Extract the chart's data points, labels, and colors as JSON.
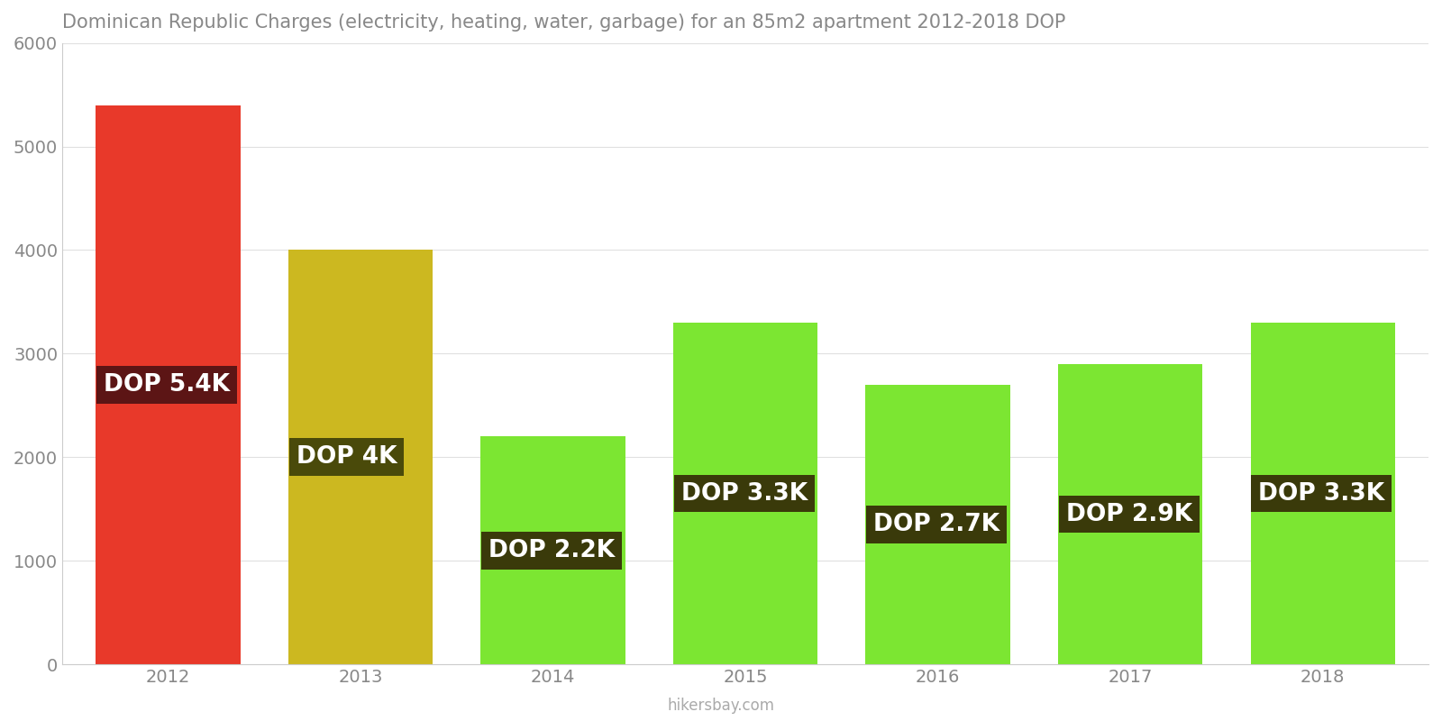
{
  "title": "Dominican Republic Charges (electricity, heating, water, garbage) for an 85m2 apartment 2012-2018 DOP",
  "years": [
    2012,
    2013,
    2014,
    2015,
    2016,
    2017,
    2018
  ],
  "values": [
    5400,
    4000,
    2200,
    3300,
    2700,
    2900,
    3300
  ],
  "labels": [
    "DOP 5.4K",
    "DOP 4K",
    "DOP 2.2K",
    "DOP 3.3K",
    "DOP 2.7K",
    "DOP 2.9K",
    "DOP 3.3K"
  ],
  "bar_colors": [
    "#e8392a",
    "#ccb820",
    "#7ce632",
    "#7ce632",
    "#7ce632",
    "#7ce632",
    "#7ce632"
  ],
  "label_bg_colors": [
    "#5c1515",
    "#4a4a0a",
    "#3a3a0a",
    "#3a3a0a",
    "#3a3a0a",
    "#3a3a0a",
    "#3a3a0a"
  ],
  "ylim": [
    0,
    6000
  ],
  "yticks": [
    0,
    1000,
    2000,
    3000,
    4000,
    5000,
    6000
  ],
  "background_color": "#ffffff",
  "watermark": "hikersbay.com",
  "title_fontsize": 15,
  "tick_fontsize": 14,
  "label_fontsize": 19
}
